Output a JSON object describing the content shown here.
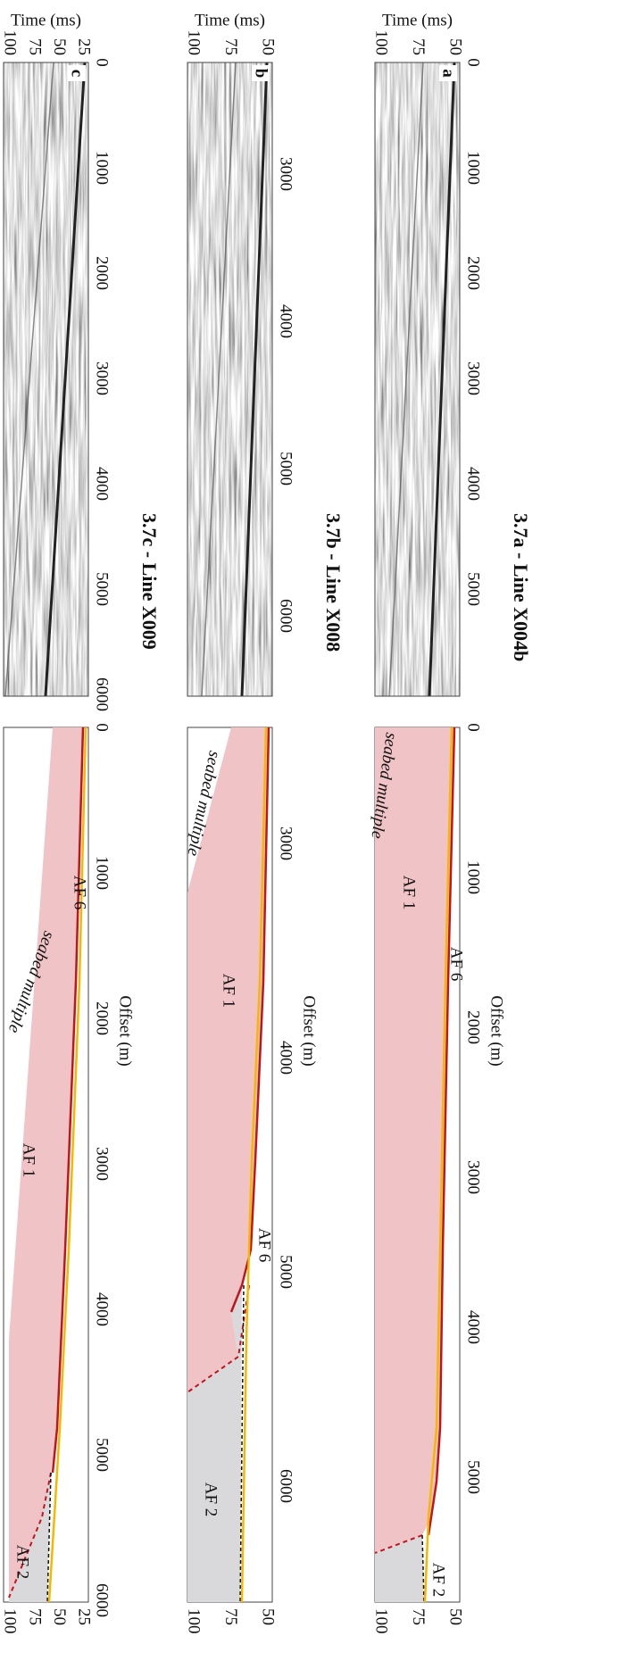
{
  "panels": [
    {
      "title": "3.7a - Line X004b",
      "letter": "a",
      "x_label": "Offset (m)",
      "y_label": "Time (ms)",
      "seismic_offset_ticks": [
        0,
        1000,
        2000,
        3000,
        4000,
        5000
      ],
      "interp_offset_ticks": [
        0,
        1000,
        2000,
        3000,
        4000,
        5000
      ],
      "time_ticks": [
        50,
        75,
        100
      ],
      "labels": [
        "seabed multiple",
        "AF 6",
        "AF 1",
        "AF 2"
      ]
    },
    {
      "title": "3.7b - Line X008",
      "letter": "b",
      "x_label": "Offset (m)",
      "y_label": "Time (ms)",
      "seismic_offset_ticks": [
        3000,
        4000,
        5000,
        6000
      ],
      "interp_offset_ticks": [
        3000,
        4000,
        5000,
        6000
      ],
      "time_ticks": [
        50,
        75,
        100
      ],
      "labels": [
        "seabed multiple",
        "AF 6",
        "AF 1",
        "AF 2"
      ]
    },
    {
      "title": "3.7c - Line X009",
      "letter": "c",
      "x_label": "Offset (m)",
      "y_label": "Time (ms)",
      "seismic_offset_ticks": [
        0,
        1000,
        2000,
        3000,
        4000,
        5000,
        6000
      ],
      "interp_offset_ticks": [
        0,
        1000,
        2000,
        3000,
        4000,
        5000,
        6000
      ],
      "time_ticks": [
        25,
        50,
        75,
        100
      ],
      "labels": [
        "seabed multiple",
        "AF 6",
        "AF 1",
        "AF 2"
      ]
    }
  ]
}
